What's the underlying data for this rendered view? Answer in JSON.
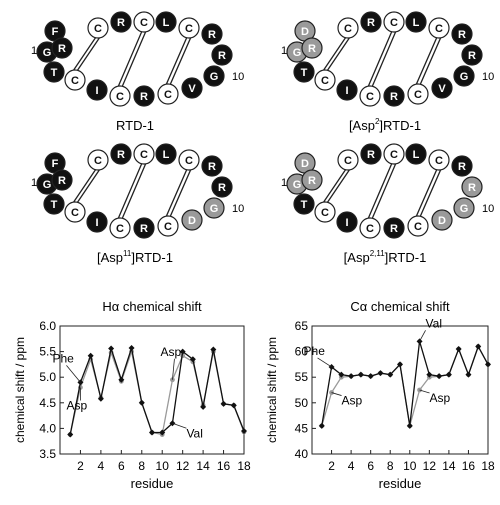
{
  "colors": {
    "black": "#111111",
    "gray": "#9a9a9a",
    "white": "#ffffff",
    "line": "#222222"
  },
  "peptides": [
    {
      "name": "RTD-1",
      "label": "RTD-1",
      "label_sup": "",
      "label_rest": "",
      "residues": [
        "G",
        "F",
        "C",
        "R",
        "C",
        "L",
        "C",
        "R",
        "R",
        "G",
        "V",
        "C",
        "R",
        "C",
        "I",
        "C",
        "T",
        "R"
      ],
      "fills": [
        "black",
        "black",
        "white",
        "black",
        "white",
        "black",
        "white",
        "black",
        "black",
        "black",
        "black",
        "white",
        "black",
        "white",
        "black",
        "white",
        "black",
        "black"
      ]
    },
    {
      "name": "Asp2-RTD-1",
      "label": "[Asp",
      "label_sup": "2",
      "label_rest": "]RTD-1",
      "residues": [
        "G",
        "D",
        "C",
        "R",
        "C",
        "L",
        "C",
        "R",
        "R",
        "G",
        "V",
        "C",
        "R",
        "C",
        "I",
        "C",
        "T",
        "R"
      ],
      "fills": [
        "gray",
        "gray",
        "white",
        "black",
        "white",
        "black",
        "white",
        "black",
        "black",
        "black",
        "black",
        "white",
        "black",
        "white",
        "black",
        "white",
        "black",
        "gray"
      ]
    },
    {
      "name": "Asp11-RTD-1",
      "label": "[Asp",
      "label_sup": "11",
      "label_rest": "]RTD-1",
      "residues": [
        "G",
        "F",
        "C",
        "R",
        "C",
        "L",
        "C",
        "R",
        "R",
        "G",
        "D",
        "C",
        "R",
        "C",
        "I",
        "C",
        "T",
        "R"
      ],
      "fills": [
        "black",
        "black",
        "white",
        "black",
        "white",
        "black",
        "white",
        "black",
        "black",
        "gray",
        "gray",
        "white",
        "black",
        "white",
        "black",
        "white",
        "black",
        "black"
      ]
    },
    {
      "name": "Asp2-11-RTD-1",
      "label": "[Asp",
      "label_sup": "2,11",
      "label_rest": "]RTD-1",
      "residues": [
        "G",
        "D",
        "C",
        "R",
        "C",
        "L",
        "C",
        "R",
        "R",
        "G",
        "D",
        "C",
        "R",
        "C",
        "I",
        "C",
        "T",
        "R"
      ],
      "fills": [
        "gray",
        "gray",
        "white",
        "black",
        "white",
        "black",
        "white",
        "black",
        "gray",
        "gray",
        "gray",
        "white",
        "black",
        "white",
        "black",
        "white",
        "black",
        "gray"
      ]
    }
  ],
  "residue_numbers": {
    "first": "1",
    "tenth": "10"
  },
  "chart_data": [
    {
      "type": "line",
      "title": "Hα chemical shift",
      "xlabel": "residue",
      "ylabel": "chemical shift / ppm",
      "xlim": [
        0,
        18
      ],
      "ylim": [
        3.5,
        6.0
      ],
      "xticks": [
        2,
        4,
        6,
        8,
        10,
        12,
        14,
        16,
        18
      ],
      "yticks": [
        3.5,
        4.0,
        4.5,
        5.0,
        5.5,
        6.0
      ],
      "ytick_labels": [
        "3.5",
        "4.0",
        "4.5",
        "5.0",
        "5.5",
        "6.0"
      ],
      "series": [
        {
          "color": "black",
          "marker": "diamond",
          "x": [
            1,
            2,
            3,
            4,
            5,
            6,
            7,
            8,
            9,
            10,
            11,
            12,
            13,
            14,
            15,
            16,
            17,
            18
          ],
          "y": [
            3.88,
            4.9,
            5.42,
            4.58,
            5.56,
            4.95,
            5.57,
            4.5,
            3.92,
            3.92,
            4.1,
            5.5,
            5.35,
            4.42,
            5.54,
            4.48,
            4.45,
            3.95
          ]
        },
        {
          "color": "gray",
          "marker": "circle",
          "x": [
            1,
            2,
            3,
            4,
            5,
            6,
            7,
            8,
            9,
            10,
            11,
            12,
            13,
            14,
            15,
            16,
            17,
            18
          ],
          "y": [
            3.88,
            4.8,
            5.35,
            4.6,
            5.48,
            4.92,
            5.5,
            4.5,
            3.92,
            3.88,
            4.95,
            5.42,
            5.3,
            4.45,
            5.5,
            4.48,
            4.45,
            3.93
          ]
        }
      ],
      "annotations": [
        {
          "text": "Phe",
          "x": 2,
          "y": 4.9
        },
        {
          "text": "Asp",
          "x": 2,
          "y": 4.8
        },
        {
          "text": "Asp",
          "x": 11,
          "y": 4.95
        },
        {
          "text": "Val",
          "x": 11,
          "y": 4.1
        }
      ]
    },
    {
      "type": "line",
      "title": "Cα chemical shift",
      "xlabel": "residue",
      "ylabel": "chemical shift / ppm",
      "xlim": [
        0,
        18
      ],
      "ylim": [
        40,
        65
      ],
      "xticks": [
        2,
        4,
        6,
        8,
        10,
        12,
        14,
        16,
        18
      ],
      "yticks": [
        40,
        45,
        50,
        55,
        60,
        65
      ],
      "ytick_labels": [
        "40",
        "45",
        "50",
        "55",
        "60",
        "65"
      ],
      "series": [
        {
          "color": "black",
          "marker": "diamond",
          "x": [
            1,
            2,
            3,
            4,
            5,
            6,
            7,
            8,
            9,
            10,
            11,
            12,
            13,
            14,
            15,
            16,
            17,
            18
          ],
          "y": [
            45.5,
            57,
            55.5,
            55.2,
            55.5,
            55.2,
            55.8,
            55.5,
            57.5,
            45.5,
            62,
            55.5,
            55.2,
            55.5,
            60.5,
            55.5,
            61,
            57.5
          ]
        },
        {
          "color": "gray",
          "marker": "circle",
          "x": [
            1,
            2,
            3,
            4,
            5,
            6,
            7,
            8,
            9,
            10,
            11,
            12,
            13,
            14,
            15,
            16,
            17,
            18
          ],
          "y": [
            45.5,
            52,
            55,
            55.2,
            55.5,
            55.2,
            55.8,
            55.5,
            57.5,
            45.5,
            52.5,
            55,
            55.2,
            55.5,
            60.5,
            55.5,
            61,
            57.5
          ]
        }
      ],
      "annotations": [
        {
          "text": "Phe",
          "x": 2,
          "y": 57
        },
        {
          "text": "Asp",
          "x": 2,
          "y": 52
        },
        {
          "text": "Val",
          "x": 11,
          "y": 62
        },
        {
          "text": "Asp",
          "x": 11,
          "y": 52.5
        }
      ]
    }
  ]
}
